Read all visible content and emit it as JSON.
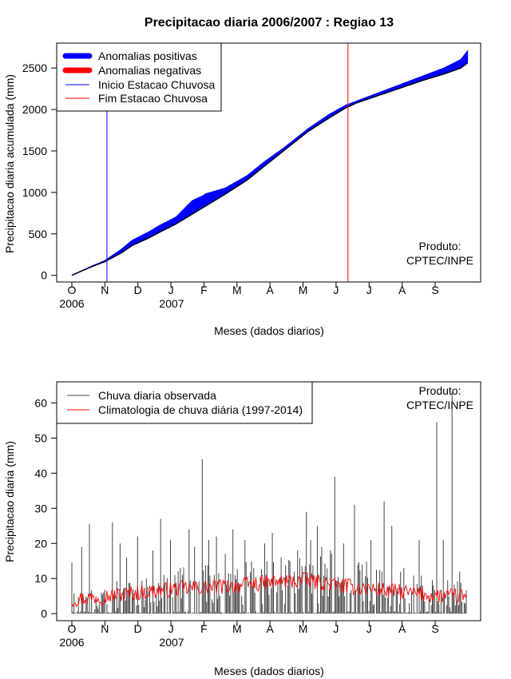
{
  "chart_data": [
    {
      "type": "area",
      "title": "Precipitacao diaria 2006/2007 : Regiao 13",
      "xlabel": "Meses (dados diarios)",
      "ylabel": "Precipitacao diaria acumulada (mm)",
      "ylim": [
        -80,
        2800
      ],
      "yticks": [
        0,
        500,
        1000,
        1500,
        2000,
        2500
      ],
      "month_ticks": [
        "O",
        "N",
        "D",
        "J",
        "F",
        "M",
        "A",
        "M",
        "J",
        "J",
        "A",
        "S"
      ],
      "year_labels": [
        "2006",
        "2007"
      ],
      "day_range": [
        0,
        360
      ],
      "legend": {
        "position": "top-left",
        "entries": [
          {
            "label": "Anomalias positivas",
            "color": "#0000ff",
            "style": "thick"
          },
          {
            "label": "Anomalias negativas",
            "color": "#ff0000",
            "style": "thick"
          },
          {
            "label": "Inicio Estacao Chuvosa",
            "color": "#0000ff",
            "style": "thin"
          },
          {
            "label": "Fim Estacao Chuvosa",
            "color": "#ff0000",
            "style": "thin"
          }
        ]
      },
      "rainy_season_start_day": 32,
      "rainy_season_end_day": 252,
      "observed_accumulated": {
        "day": [
          0,
          10,
          20,
          30,
          45,
          55,
          70,
          80,
          95,
          110,
          120,
          122,
          140,
          160,
          175,
          195,
          215,
          235,
          250,
          260,
          280,
          300,
          320,
          340,
          355,
          361
        ],
        "value": [
          0,
          60,
          120,
          175,
          310,
          420,
          520,
          600,
          700,
          900,
          960,
          980,
          1050,
          1200,
          1360,
          1550,
          1760,
          1940,
          2050,
          2100,
          2200,
          2300,
          2400,
          2500,
          2600,
          2700
        ]
      },
      "climatology_accumulated": {
        "day": [
          0,
          10,
          20,
          30,
          45,
          55,
          70,
          80,
          95,
          110,
          120,
          140,
          160,
          175,
          195,
          215,
          235,
          250,
          260,
          280,
          300,
          320,
          340,
          355,
          361
        ],
        "value": [
          0,
          60,
          115,
          165,
          270,
          360,
          450,
          520,
          620,
          740,
          820,
          980,
          1150,
          1310,
          1520,
          1730,
          1900,
          2020,
          2080,
          2170,
          2260,
          2350,
          2430,
          2500,
          2560
        ]
      },
      "annotation": [
        "Produto:",
        "CPTEC/INPE"
      ]
    },
    {
      "type": "bar",
      "xlabel": "Meses (dados diarios)",
      "ylabel": "Precipitacao diaria (mm)",
      "ylim": [
        -2,
        66
      ],
      "yticks": [
        0,
        10,
        20,
        30,
        40,
        50,
        60
      ],
      "month_ticks": [
        "O",
        "N",
        "D",
        "J",
        "F",
        "M",
        "A",
        "M",
        "J",
        "J",
        "A",
        "S"
      ],
      "year_labels": [
        "2006",
        "2007"
      ],
      "day_range": [
        0,
        360
      ],
      "legend": {
        "position": "top-left",
        "entries": [
          {
            "label": "Chuva diaria observada",
            "color": "#444444"
          },
          {
            "label": "Climatologia de chuva diária (1997-2014)",
            "color": "#ff0000"
          }
        ]
      },
      "climatology_monthly_mean": [
        4,
        5,
        6,
        7,
        7.5,
        8,
        9,
        9.5,
        8,
        7,
        6,
        5
      ],
      "daily_rain_peaks": [
        {
          "day": 0,
          "value": 14.5
        },
        {
          "day": 9,
          "value": 19
        },
        {
          "day": 16,
          "value": 25.5
        },
        {
          "day": 37,
          "value": 26
        },
        {
          "day": 44,
          "value": 20
        },
        {
          "day": 50,
          "value": 16
        },
        {
          "day": 60,
          "value": 22
        },
        {
          "day": 68,
          "value": 10
        },
        {
          "day": 74,
          "value": 18
        },
        {
          "day": 81,
          "value": 27
        },
        {
          "day": 90,
          "value": 21
        },
        {
          "day": 99,
          "value": 13
        },
        {
          "day": 107,
          "value": 24
        },
        {
          "day": 112,
          "value": 19
        },
        {
          "day": 119,
          "value": 44
        },
        {
          "day": 125,
          "value": 21
        },
        {
          "day": 132,
          "value": 22
        },
        {
          "day": 140,
          "value": 17
        },
        {
          "day": 147,
          "value": 24
        },
        {
          "day": 158,
          "value": 21
        },
        {
          "day": 166,
          "value": 13
        },
        {
          "day": 176,
          "value": 20
        },
        {
          "day": 183,
          "value": 23
        },
        {
          "day": 191,
          "value": 16
        },
        {
          "day": 199,
          "value": 15
        },
        {
          "day": 206,
          "value": 18
        },
        {
          "day": 214,
          "value": 29
        },
        {
          "day": 218,
          "value": 21
        },
        {
          "day": 224,
          "value": 25
        },
        {
          "day": 228,
          "value": 19
        },
        {
          "day": 236,
          "value": 18
        },
        {
          "day": 240,
          "value": 39
        },
        {
          "day": 248,
          "value": 20
        },
        {
          "day": 258,
          "value": 31
        },
        {
          "day": 265,
          "value": 14
        },
        {
          "day": 273,
          "value": 21
        },
        {
          "day": 285,
          "value": 32
        },
        {
          "day": 292,
          "value": 25
        },
        {
          "day": 303,
          "value": 13
        },
        {
          "day": 317,
          "value": 21
        },
        {
          "day": 333,
          "value": 54.5
        },
        {
          "day": 339,
          "value": 21
        },
        {
          "day": 347,
          "value": 63
        },
        {
          "day": 354,
          "value": 12
        }
      ],
      "annotation": [
        "Produto:",
        "CPTEC/INPE"
      ]
    }
  ]
}
